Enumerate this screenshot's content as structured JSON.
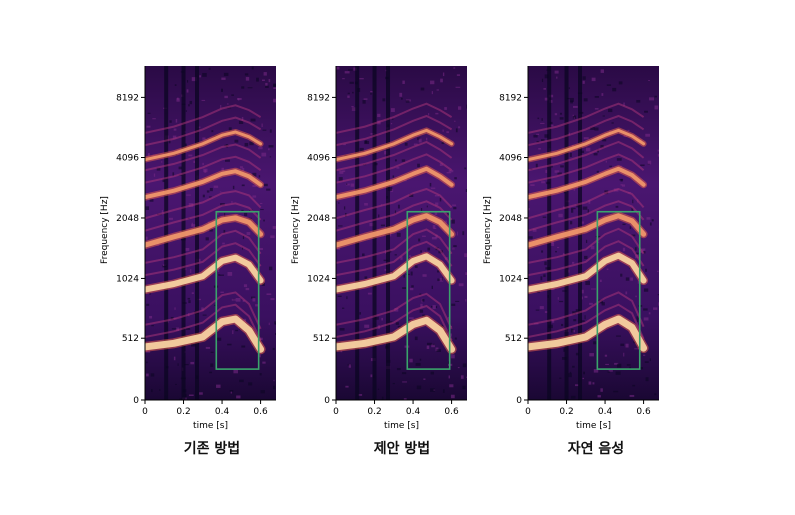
{
  "chart_data": [
    {
      "type": "heatmap",
      "caption": "기존 방법",
      "xlabel": "time [s]",
      "ylabel": "Frequency [Hz]",
      "xticks": [
        0,
        0.2,
        0.4,
        0.6
      ],
      "xtick_labels": [
        "0",
        "0.2",
        "0.4",
        "0.6"
      ],
      "yticks": [
        0,
        512,
        1024,
        2048,
        4096,
        8192
      ],
      "ytick_labels": [
        "0",
        "512",
        "1024",
        "2048",
        "4096",
        "8192"
      ],
      "xlim": [
        0,
        0.68
      ],
      "ylim": [
        0,
        12000
      ],
      "highlight_box": {
        "x0": 0.37,
        "x1": 0.59,
        "y0": 256,
        "y1": 2200,
        "color": "#3aa36b"
      },
      "formant_bands": [
        {
          "freq": [
            440,
            470,
            520,
            620,
            640,
            560,
            420
          ],
          "t": [
            0.0,
            0.15,
            0.3,
            0.4,
            0.47,
            0.54,
            0.6
          ]
        },
        {
          "freq": [
            900,
            960,
            1050,
            1250,
            1300,
            1200,
            1000
          ],
          "t": [
            0.0,
            0.15,
            0.3,
            0.4,
            0.47,
            0.54,
            0.6
          ]
        },
        {
          "freq": [
            1500,
            1650,
            1800,
            2000,
            2050,
            1950,
            1700
          ],
          "t": [
            0.0,
            0.15,
            0.3,
            0.4,
            0.47,
            0.54,
            0.6
          ]
        },
        {
          "freq": [
            2600,
            2800,
            3100,
            3400,
            3500,
            3300,
            3000
          ],
          "t": [
            0.0,
            0.15,
            0.3,
            0.4,
            0.47,
            0.54,
            0.6
          ]
        },
        {
          "freq": [
            4000,
            4300,
            4800,
            5300,
            5500,
            5200,
            4800
          ],
          "t": [
            0.0,
            0.15,
            0.3,
            0.4,
            0.47,
            0.54,
            0.6
          ]
        }
      ]
    },
    {
      "type": "heatmap",
      "caption": "제안 방법",
      "xlabel": "time [s]",
      "ylabel": "Frequency [Hz]",
      "xticks": [
        0,
        0.2,
        0.4,
        0.6
      ],
      "xtick_labels": [
        "0",
        "0.2",
        "0.4",
        "0.6"
      ],
      "yticks": [
        0,
        512,
        1024,
        2048,
        4096,
        8192
      ],
      "ytick_labels": [
        "0",
        "512",
        "1024",
        "2048",
        "4096",
        "8192"
      ],
      "xlim": [
        0,
        0.68
      ],
      "ylim": [
        0,
        12000
      ],
      "highlight_box": {
        "x0": 0.37,
        "x1": 0.59,
        "y0": 256,
        "y1": 2200,
        "color": "#3aa36b"
      },
      "formant_bands": [
        {
          "freq": [
            440,
            470,
            520,
            600,
            630,
            560,
            420
          ],
          "t": [
            0.0,
            0.15,
            0.3,
            0.4,
            0.47,
            0.54,
            0.6
          ]
        },
        {
          "freq": [
            900,
            960,
            1050,
            1250,
            1320,
            1200,
            1000
          ],
          "t": [
            0.0,
            0.15,
            0.3,
            0.4,
            0.47,
            0.54,
            0.6
          ]
        },
        {
          "freq": [
            1500,
            1650,
            1800,
            2000,
            2100,
            1950,
            1700
          ],
          "t": [
            0.0,
            0.15,
            0.3,
            0.4,
            0.47,
            0.54,
            0.6
          ]
        },
        {
          "freq": [
            2600,
            2800,
            3100,
            3400,
            3600,
            3300,
            3000
          ],
          "t": [
            0.0,
            0.15,
            0.3,
            0.4,
            0.47,
            0.54,
            0.6
          ]
        },
        {
          "freq": [
            4000,
            4300,
            4800,
            5300,
            5600,
            5200,
            4800
          ],
          "t": [
            0.0,
            0.15,
            0.3,
            0.4,
            0.47,
            0.54,
            0.6
          ]
        }
      ]
    },
    {
      "type": "heatmap",
      "caption": "자연 음성",
      "xlabel": "time [s]",
      "ylabel": "Frequency [Hz]",
      "xticks": [
        0,
        0.2,
        0.4,
        0.6
      ],
      "xtick_labels": [
        "0",
        "0.2",
        "0.4",
        "0.6"
      ],
      "yticks": [
        0,
        512,
        1024,
        2048,
        4096,
        8192
      ],
      "ytick_labels": [
        "0",
        "512",
        "1024",
        "2048",
        "4096",
        "8192"
      ],
      "xlim": [
        0,
        0.68
      ],
      "ylim": [
        0,
        12000
      ],
      "highlight_box": {
        "x0": 0.36,
        "x1": 0.58,
        "y0": 256,
        "y1": 2200,
        "color": "#3aa36b"
      },
      "formant_bands": [
        {
          "freq": [
            440,
            470,
            520,
            600,
            640,
            580,
            430
          ],
          "t": [
            0.0,
            0.15,
            0.3,
            0.4,
            0.47,
            0.54,
            0.6
          ]
        },
        {
          "freq": [
            900,
            960,
            1050,
            1250,
            1330,
            1220,
            1000
          ],
          "t": [
            0.0,
            0.15,
            0.3,
            0.4,
            0.47,
            0.54,
            0.6
          ]
        },
        {
          "freq": [
            1500,
            1650,
            1800,
            2000,
            2100,
            1980,
            1700
          ],
          "t": [
            0.0,
            0.15,
            0.3,
            0.4,
            0.47,
            0.54,
            0.6
          ]
        },
        {
          "freq": [
            2600,
            2800,
            3100,
            3400,
            3600,
            3350,
            3000
          ],
          "t": [
            0.0,
            0.15,
            0.3,
            0.4,
            0.47,
            0.54,
            0.6
          ]
        },
        {
          "freq": [
            4000,
            4300,
            4800,
            5300,
            5600,
            5250,
            4800
          ],
          "t": [
            0.0,
            0.15,
            0.3,
            0.4,
            0.47,
            0.54,
            0.6
          ]
        }
      ]
    }
  ],
  "colors": {
    "background": "#ffffff",
    "spec_dark": "#0b0522",
    "spec_mid": "#5b1a78",
    "spec_hot": "#e35e4a",
    "spec_bright": "#fcd9a5",
    "axis": "#000000",
    "box": "#3aa36b"
  }
}
